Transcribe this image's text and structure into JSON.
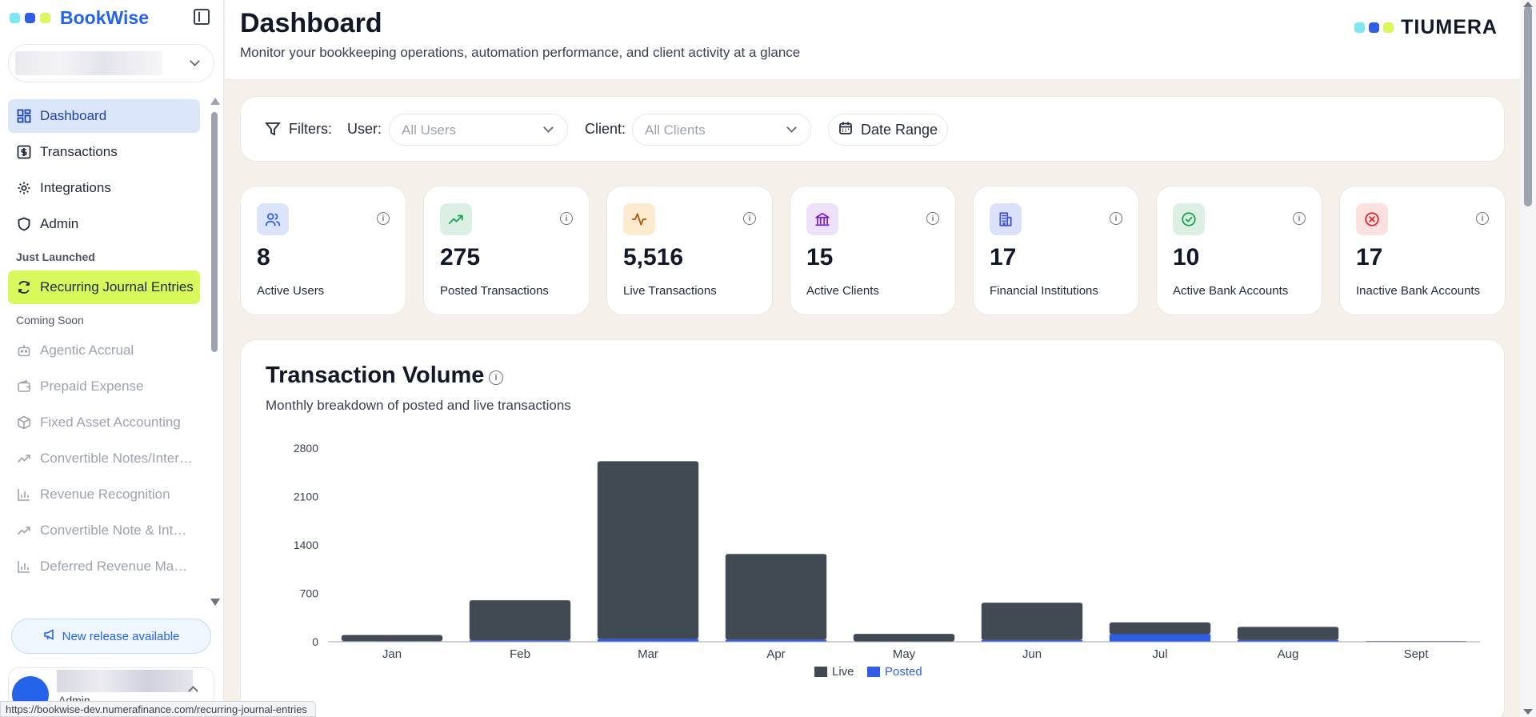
{
  "sidebar": {
    "brand": "BookWise",
    "brand_colors": [
      "#7ee8f0",
      "#2f5ee5",
      "#d9f85c"
    ],
    "nav": [
      {
        "label": "Dashboard",
        "icon": "dashboard-icon",
        "active": true
      },
      {
        "label": "Transactions",
        "icon": "dollar-icon"
      },
      {
        "label": "Integrations",
        "icon": "gear-icon"
      },
      {
        "label": "Admin",
        "icon": "shield-icon"
      }
    ],
    "just_launched_label": "Just Launched",
    "just_launched": [
      {
        "label": "Recurring Journal Entries",
        "icon": "refresh-icon"
      }
    ],
    "coming_soon_label": "Coming Soon",
    "coming_soon": [
      {
        "label": "Agentic Accrual",
        "icon": "bot-icon"
      },
      {
        "label": "Prepaid Expense",
        "icon": "wallet-icon"
      },
      {
        "label": "Fixed Asset Accounting",
        "icon": "box-icon"
      },
      {
        "label": "Convertible Notes/Interest",
        "icon": "trending-up-icon"
      },
      {
        "label": "Revenue Recognition",
        "icon": "bar-chart-icon"
      },
      {
        "label": "Convertible Note & Interest",
        "icon": "trending-up-icon"
      },
      {
        "label": "Deferred Revenue Management",
        "icon": "bar-chart-icon"
      }
    ],
    "release_label": "New release available",
    "user_role": "Admin"
  },
  "status_url": "https://bookwise-dev.numerafinance.com/recurring-journal-entries",
  "header": {
    "title": "Dashboard",
    "subtitle": "Monitor your bookkeeping operations, automation performance, and client activity at a glance",
    "logo": "TIUMERA"
  },
  "filters": {
    "label": "Filters:",
    "user_label": "User:",
    "user_placeholder": "All Users",
    "client_label": "Client:",
    "client_placeholder": "All Clients",
    "date_range": "Date Range"
  },
  "stats": [
    {
      "value": "8",
      "label": "Active Users",
      "icon": "users-icon",
      "bg": "#dbe4fb",
      "fg": "#2f5ee5"
    },
    {
      "value": "275",
      "label": "Posted Transactions",
      "icon": "trending-up-icon",
      "bg": "#dcefe4",
      "fg": "#16a34a"
    },
    {
      "value": "5,516",
      "label": "Live Transactions",
      "icon": "activity-icon",
      "bg": "#fdebcf",
      "fg": "#b45309"
    },
    {
      "value": "15",
      "label": "Active Clients",
      "icon": "bank-icon",
      "bg": "#ede1fb",
      "fg": "#7e22ce"
    },
    {
      "value": "17",
      "label": "Financial Institutions",
      "icon": "building-icon",
      "bg": "#dbe1fb",
      "fg": "#3b4fd8"
    },
    {
      "value": "10",
      "label": "Active Bank Accounts",
      "icon": "check-circle-icon",
      "bg": "#dcefe4",
      "fg": "#16a34a"
    },
    {
      "value": "17",
      "label": "Inactive Bank Accounts",
      "icon": "x-circle-icon",
      "bg": "#fde0e0",
      "fg": "#dc2626"
    }
  ],
  "chart": {
    "title": "Transaction Volume",
    "subtitle": "Monthly breakdown of posted and live transactions"
  },
  "chart_data": {
    "type": "bar",
    "stacked": true,
    "categories": [
      "Jan",
      "Feb",
      "Mar",
      "Apr",
      "May",
      "Jun",
      "Jul",
      "Aug",
      "Sept"
    ],
    "series": [
      {
        "name": "Live",
        "color": "#414a53",
        "values": [
          90,
          580,
          2570,
          1240,
          110,
          540,
          170,
          190,
          10
        ]
      },
      {
        "name": "Posted",
        "color": "#2f5ee5",
        "values": [
          8,
          20,
          40,
          30,
          4,
          25,
          110,
          25,
          0
        ]
      }
    ],
    "yticks": [
      0,
      700,
      1400,
      2100,
      2800
    ],
    "ylim": [
      0,
      2800
    ],
    "legend": "bottom-center"
  }
}
